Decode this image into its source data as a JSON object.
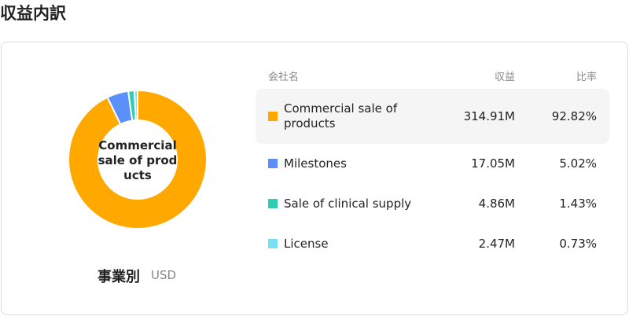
{
  "title": "収益内訳",
  "chart_data": {
    "type": "pie",
    "donut": true,
    "center_label": "Commercial sale of products",
    "caption": "事業別",
    "unit": "USD",
    "categories": [
      "Commercial sale of products",
      "Milestones",
      "Sale of clinical supply",
      "License"
    ],
    "values": [
      92.82,
      5.02,
      1.43,
      0.73
    ],
    "value_labels": [
      "92.82%",
      "5.02%",
      "1.43%",
      "0.73%"
    ],
    "colors": [
      "#ffa800",
      "#5b8ff9",
      "#2ecdb4",
      "#76e0f5"
    ]
  },
  "table": {
    "columns": [
      "会社名",
      "収益",
      "比率"
    ],
    "revenue": [
      "314.91M",
      "17.05M",
      "4.86M",
      "2.47M"
    ],
    "selected": 0
  }
}
